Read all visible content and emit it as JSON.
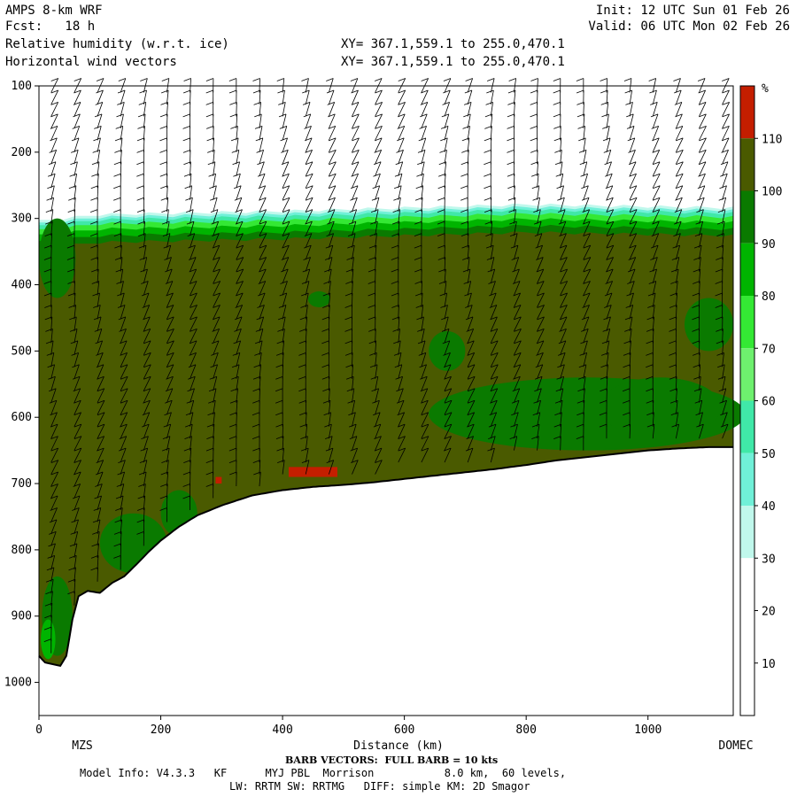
{
  "header": {
    "model": "AMPS 8-km WRF",
    "fcst": "Fcst:   18 h",
    "init": "Init: 12 UTC Sun 01 Feb 26",
    "valid": "Valid: 06 UTC Mon 02 Feb 26",
    "field1": "Relative humidity (w.r.t. ice)",
    "field2": "Horizontal wind vectors",
    "xy1": "XY= 367.1,559.1 to 255.0,470.1",
    "xy2": "XY= 367.1,559.1 to 255.0,470.1"
  },
  "footer": {
    "barb": "BARB VECTORS:  FULL BARB = 10 kts",
    "model_info": "Model Info: V4.3.3   KF      MYJ PBL  Morrison           8.0 km,  60 levels,",
    "physics": "LW: RRTM SW: RRTMG   DIFF: simple KM: 2D Smagor"
  },
  "colors": {
    "rh_110_plus": "#c41e00",
    "rh_100_110": "#4a5a00",
    "rh_90_100": "#0a7a00",
    "rh_80_90": "#00b400",
    "rh_70_80": "#34e834",
    "rh_60_70": "#6ef06e",
    "rh_50_60": "#40e8a8",
    "rh_40_50": "#70f0d8",
    "rh_30_40": "#c0f8ec",
    "rh_below_30": "#ffffff"
  },
  "chart_data": {
    "type": "heatmap",
    "title": "Relative humidity (w.r.t. ice)",
    "xlabel": "Distance (km)",
    "ylabel": "",
    "xlim": [
      0,
      1140
    ],
    "ylim": [
      1050,
      100
    ],
    "x_ticks": [
      0,
      200,
      400,
      600,
      800,
      1000
    ],
    "y_ticks": [
      100,
      200,
      300,
      400,
      500,
      600,
      700,
      800,
      900,
      1000
    ],
    "x_end_labels": {
      "left": "MZS",
      "right": "DOMEC"
    },
    "colorbar": {
      "unit": "%",
      "levels": [
        10,
        20,
        30,
        40,
        50,
        60,
        70,
        80,
        90,
        100,
        110
      ]
    },
    "terrain_surface": {
      "x": [
        0,
        10,
        20,
        35,
        45,
        55,
        65,
        80,
        100,
        120,
        140,
        160,
        180,
        200,
        230,
        260,
        300,
        350,
        400,
        450,
        500,
        550,
        600,
        650,
        700,
        750,
        800,
        850,
        900,
        950,
        1000,
        1050,
        1100,
        1140
      ],
      "pressure": [
        960,
        970,
        972,
        975,
        960,
        905,
        870,
        862,
        865,
        850,
        840,
        822,
        803,
        786,
        765,
        748,
        733,
        718,
        710,
        705,
        702,
        698,
        693,
        688,
        683,
        678,
        672,
        665,
        660,
        655,
        650,
        647,
        645,
        645
      ]
    },
    "moist_layer_top_pressure": [
      {
        "x": 0,
        "pressure": 310
      },
      {
        "x": 100,
        "pressure": 300
      },
      {
        "x": 400,
        "pressure": 295
      },
      {
        "x": 800,
        "pressure": 285
      },
      {
        "x": 1140,
        "pressure": 290
      }
    ],
    "supersaturated_patches_over_110": [
      {
        "x": [
          290,
          300
        ],
        "pressure": [
          690,
          700
        ]
      },
      {
        "x": [
          410,
          490
        ],
        "pressure": [
          675,
          690
        ]
      }
    ],
    "wind_barbs": {
      "barb_unit": "kts",
      "full_barb_value": 10
    }
  }
}
